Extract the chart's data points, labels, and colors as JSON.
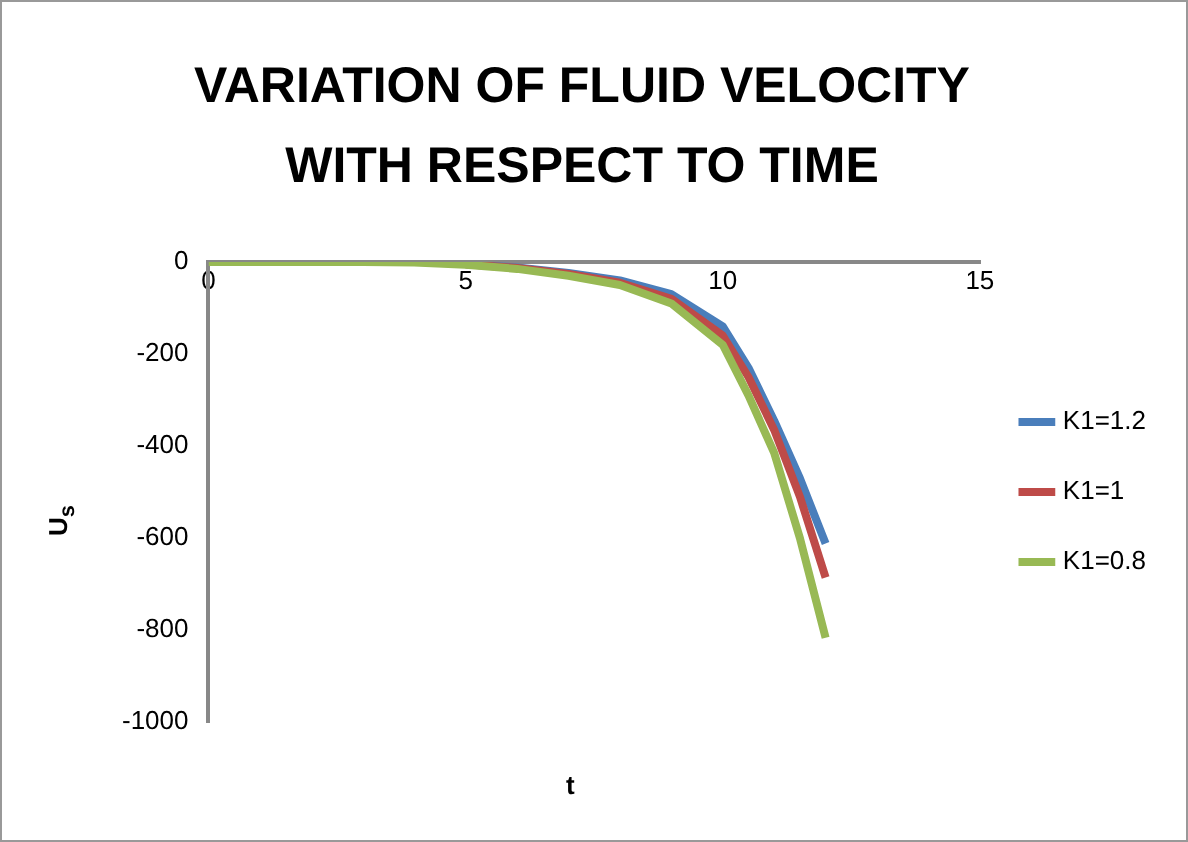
{
  "chart_data": {
    "type": "line",
    "title": "VARIATION OF FLUID VELOCITY WITH RESPECT TO TIME",
    "xlabel": "t",
    "ylabel": "U$_{s}$",
    "x": [
      0,
      1,
      2,
      3,
      4,
      5,
      6,
      7,
      8,
      9,
      10,
      10.5,
      11,
      11.5,
      12
    ],
    "series": [
      {
        "name": "K1=1.2",
        "color": "#4a7ebb",
        "values": [
          null,
          null,
          null,
          null,
          null,
          -5,
          -12,
          -24,
          -40,
          -70,
          -140,
          -230,
          -345,
          -470,
          -612
        ]
      },
      {
        "name": "K1=1",
        "color": "#be4b48",
        "values": [
          null,
          null,
          null,
          null,
          null,
          -5,
          -13,
          -26,
          -45,
          -80,
          -160,
          -250,
          -365,
          -510,
          -686
        ]
      },
      {
        "name": "K1=0.8",
        "color": "#98b954",
        "values": [
          0,
          0,
          0,
          0,
          -1,
          -6,
          -15,
          -30,
          -50,
          -90,
          -180,
          -290,
          -415,
          -600,
          -817
        ]
      }
    ],
    "xlim": [
      0,
      15
    ],
    "xticks": [
      0,
      5,
      10,
      15
    ],
    "ylim": [
      -1000,
      0
    ],
    "yticks": [
      -1000,
      -800,
      -600,
      -400,
      -200,
      0
    ],
    "legend": "right",
    "grid": false,
    "marker": "none",
    "line_style": "solid"
  }
}
